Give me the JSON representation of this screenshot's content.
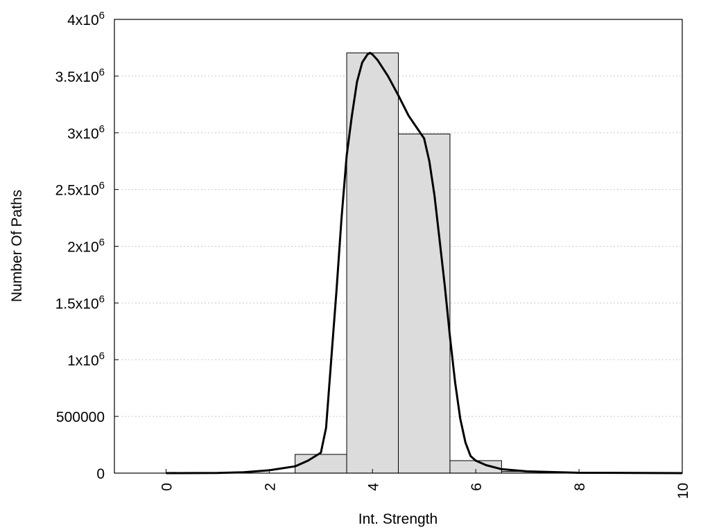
{
  "chart_data": {
    "type": "bar",
    "xlabel": "Int. Strength",
    "ylabel": "Number Of Paths",
    "xlim": [
      -1,
      10
    ],
    "ylim": [
      0,
      4000000
    ],
    "grid": "horizontal dotted",
    "x_ticks": [
      {
        "value": 0,
        "label": "0"
      },
      {
        "value": 2,
        "label": "2"
      },
      {
        "value": 4,
        "label": "4"
      },
      {
        "value": 6,
        "label": "6"
      },
      {
        "value": 8,
        "label": "8"
      },
      {
        "value": 10,
        "label": "10"
      }
    ],
    "y_ticks": [
      {
        "value": 0,
        "base": "0",
        "exp": ""
      },
      {
        "value": 500000,
        "base": "500000",
        "exp": ""
      },
      {
        "value": 1000000,
        "base": "1x10",
        "exp": "6"
      },
      {
        "value": 1500000,
        "base": "1.5x10",
        "exp": "6"
      },
      {
        "value": 2000000,
        "base": "2x10",
        "exp": "6"
      },
      {
        "value": 2500000,
        "base": "2.5x10",
        "exp": "6"
      },
      {
        "value": 3000000,
        "base": "3x10",
        "exp": "6"
      },
      {
        "value": 3500000,
        "base": "3.5x10",
        "exp": "6"
      },
      {
        "value": 4000000,
        "base": "4x10",
        "exp": "6"
      }
    ],
    "bin_width": 1,
    "bars": [
      {
        "center": 3,
        "value": 165000
      },
      {
        "center": 4,
        "value": 3705000
      },
      {
        "center": 5,
        "value": 2990000
      },
      {
        "center": 6,
        "value": 110000
      },
      {
        "center": 7,
        "value": 15000
      }
    ],
    "fit_curve": {
      "x": [
        0,
        1,
        1.5,
        2,
        2.5,
        2.75,
        3,
        3.1,
        3.2,
        3.3,
        3.4,
        3.5,
        3.6,
        3.7,
        3.8,
        3.9,
        3.95,
        4,
        4.1,
        4.3,
        4.5,
        4.7,
        5,
        5.1,
        5.2,
        5.3,
        5.4,
        5.5,
        5.6,
        5.7,
        5.8,
        5.9,
        6,
        6.2,
        6.5,
        7,
        8,
        10
      ],
      "y": [
        0,
        2000,
        8000,
        25000,
        60000,
        110000,
        180000,
        400000,
        1000000,
        1600000,
        2250000,
        2800000,
        3150000,
        3450000,
        3620000,
        3690000,
        3705000,
        3690000,
        3640000,
        3500000,
        3330000,
        3150000,
        2950000,
        2750000,
        2450000,
        2050000,
        1650000,
        1200000,
        800000,
        480000,
        270000,
        150000,
        110000,
        70000,
        35000,
        15000,
        3000,
        0
      ]
    }
  }
}
